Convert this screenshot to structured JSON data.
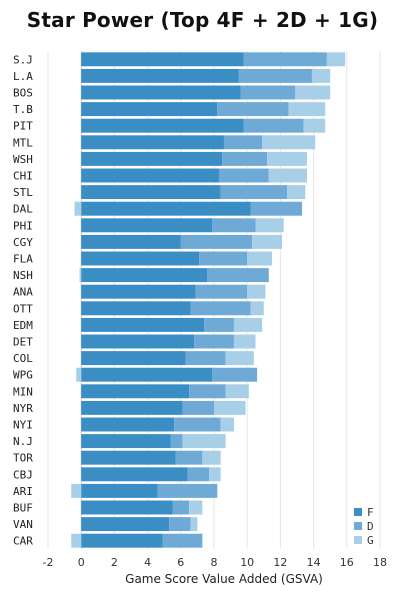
{
  "chart_data": {
    "type": "bar",
    "orientation": "horizontal",
    "stacked": true,
    "title": "Star Power (Top 4F + 2D + 1G)",
    "xlabel": "Game Score Value Added (GSVA)",
    "ylabel": "",
    "xlim": [
      -2,
      18
    ],
    "xticks": [
      -2,
      0,
      2,
      4,
      6,
      8,
      10,
      12,
      14,
      16,
      18
    ],
    "grid": true,
    "legend_position": "bottom-right",
    "categories": [
      "S.J",
      "L.A",
      "BOS",
      "T.B",
      "PIT",
      "MTL",
      "WSH",
      "CHI",
      "STL",
      "DAL",
      "PHI",
      "CGY",
      "FLA",
      "NSH",
      "ANA",
      "OTT",
      "EDM",
      "DET",
      "COL",
      "WPG",
      "MIN",
      "NYR",
      "NYI",
      "N.J",
      "TOR",
      "CBJ",
      "ARI",
      "BUF",
      "VAN",
      "CAR"
    ],
    "series": [
      {
        "name": "F",
        "color": "#3a8ec4",
        "values": [
          9.8,
          9.5,
          9.6,
          8.2,
          9.8,
          8.6,
          8.5,
          8.3,
          8.4,
          10.2,
          7.9,
          6.0,
          7.1,
          7.6,
          6.9,
          6.6,
          7.4,
          6.8,
          6.3,
          7.9,
          6.5,
          6.1,
          5.6,
          5.4,
          5.7,
          6.4,
          4.6,
          5.5,
          5.3,
          4.9
        ]
      },
      {
        "name": "D",
        "color": "#6faad6",
        "values": [
          5.0,
          4.4,
          3.3,
          4.3,
          3.6,
          2.3,
          2.7,
          3.0,
          4.0,
          3.1,
          2.6,
          4.3,
          2.9,
          3.7,
          3.1,
          3.6,
          1.8,
          2.4,
          2.4,
          2.7,
          2.2,
          1.9,
          2.8,
          0.7,
          1.6,
          1.3,
          3.6,
          1.0,
          1.3,
          2.4
        ]
      },
      {
        "name": "G",
        "color": "#a8cfe8",
        "values": [
          1.1,
          1.1,
          2.1,
          2.2,
          1.3,
          3.2,
          2.4,
          2.3,
          1.1,
          -0.4,
          1.7,
          1.8,
          1.5,
          -0.1,
          1.1,
          0.8,
          1.7,
          1.3,
          1.7,
          -0.3,
          1.4,
          1.9,
          0.8,
          2.6,
          1.1,
          0.7,
          -0.6,
          0.8,
          0.4,
          -0.6
        ]
      }
    ]
  }
}
